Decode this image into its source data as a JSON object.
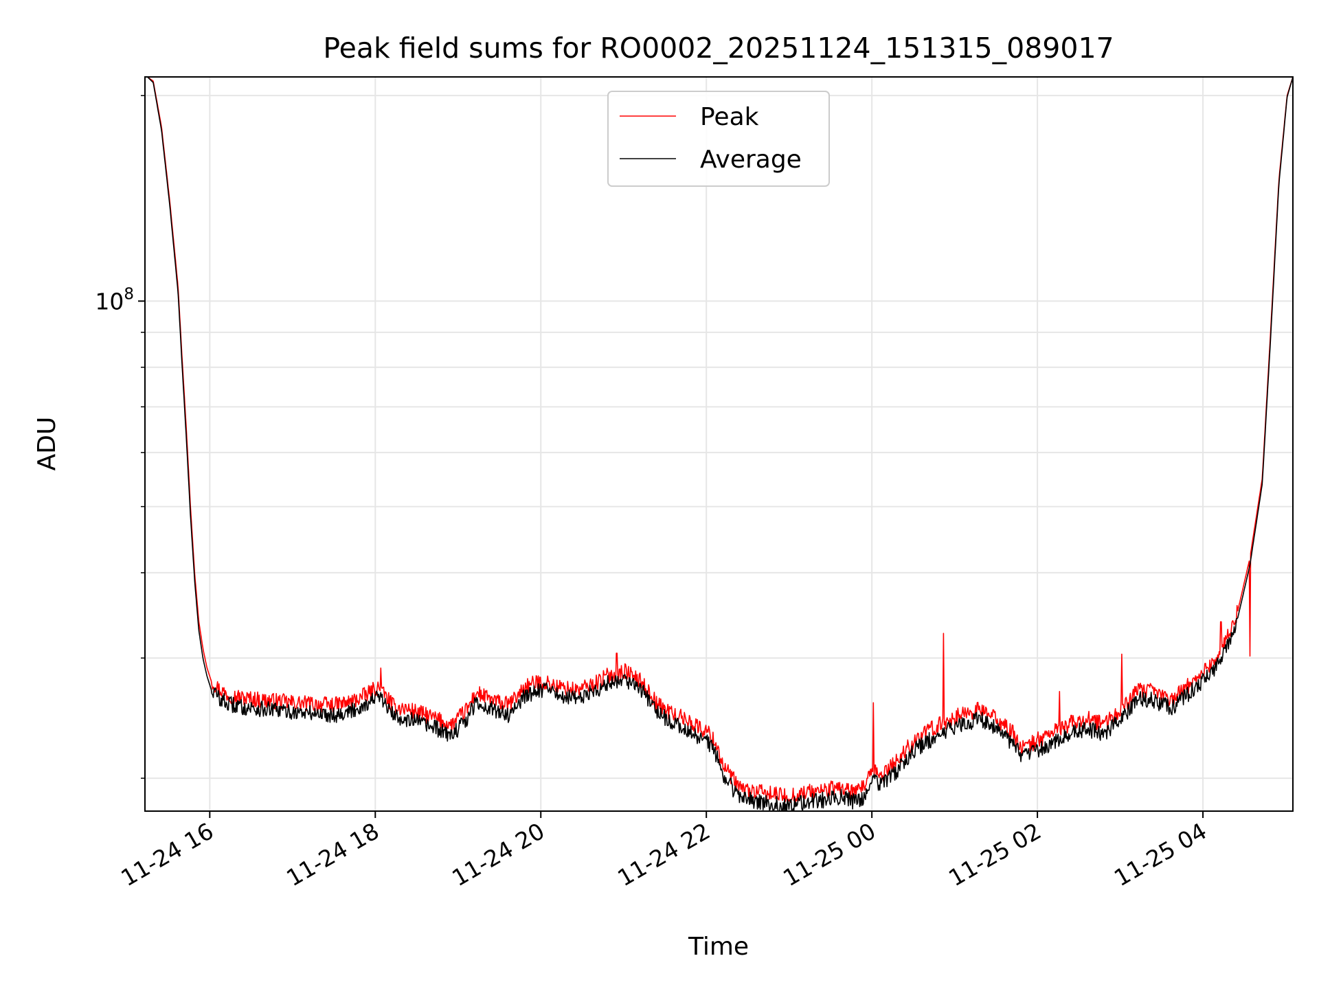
{
  "chart_data": {
    "type": "line",
    "title": "Peak field sums for RO0002_20251124_151315_089017",
    "xlabel": "Time",
    "ylabel": "ADU",
    "yscale": "log",
    "grid": true,
    "legend_position": "upper-center",
    "x_unit": "hours since 2025-11-24 15:13",
    "xlim": [
      0,
      13.87
    ],
    "ylim": [
      17900000,
      213000000
    ],
    "x_ticks": [
      {
        "x": 0.783,
        "label": "11-24 16"
      },
      {
        "x": 2.783,
        "label": "11-24 18"
      },
      {
        "x": 4.783,
        "label": "11-24 20"
      },
      {
        "x": 6.783,
        "label": "11-24 22"
      },
      {
        "x": 8.783,
        "label": "11-25 00"
      },
      {
        "x": 10.783,
        "label": "11-25 02"
      },
      {
        "x": 12.783,
        "label": "11-25 04"
      }
    ],
    "y_ticks": [
      {
        "y": 100000000,
        "base": "10",
        "exp": "8"
      }
    ],
    "y_minor_ticks": [
      20000000,
      30000000,
      40000000,
      50000000,
      60000000,
      70000000,
      80000000,
      90000000,
      200000000
    ],
    "series": [
      {
        "name": "Peak",
        "color": "#ff0000",
        "x": [
          0.03,
          0.1,
          0.2,
          0.3,
          0.4,
          0.45,
          0.5,
          0.55,
          0.6,
          0.65,
          0.7,
          0.75,
          0.8,
          0.9,
          1.0,
          1.2,
          1.5,
          1.8,
          2.0,
          2.3,
          2.5,
          2.7,
          2.8,
          2.9,
          3.0,
          3.2,
          3.5,
          3.7,
          3.9,
          4.0,
          4.2,
          4.4,
          4.6,
          4.8,
          5.0,
          5.2,
          5.4,
          5.6,
          5.8,
          6.0,
          6.2,
          6.4,
          6.6,
          6.7,
          6.8,
          6.9,
          7.0,
          7.2,
          7.5,
          7.8,
          8.0,
          8.2,
          8.4,
          8.6,
          8.7,
          8.8,
          8.9,
          9.1,
          9.3,
          9.5,
          9.7,
          9.9,
          10.1,
          10.3,
          10.5,
          10.6,
          10.8,
          11.0,
          11.2,
          11.4,
          11.6,
          11.8,
          12.0,
          12.2,
          12.4,
          12.6,
          12.8,
          12.95,
          13.05,
          13.2,
          13.35,
          13.5,
          13.6,
          13.7,
          13.8,
          13.87
        ],
        "y": [
          213000000,
          210000000,
          180000000,
          140000000,
          105000000,
          82000000,
          65000000,
          50000000,
          40000000,
          34000000,
          31000000,
          29000000,
          27800000,
          27000000,
          26500000,
          26200000,
          26000000,
          25800000,
          25700000,
          25600000,
          25900000,
          26600000,
          27200000,
          26500000,
          25500000,
          25200000,
          24500000,
          23900000,
          25300000,
          26700000,
          26000000,
          25600000,
          27300000,
          27700000,
          27200000,
          26900000,
          27400000,
          28300000,
          28700000,
          27700000,
          25600000,
          24800000,
          24200000,
          23700000,
          23400000,
          22500000,
          20700000,
          19300000,
          19000000,
          18800000,
          19100000,
          19200000,
          19400000,
          19000000,
          19600000,
          20500000,
          20200000,
          21300000,
          22800000,
          23600000,
          24300000,
          24900000,
          25200000,
          24400000,
          23200000,
          22100000,
          22800000,
          23500000,
          24100000,
          24400000,
          24000000,
          25300000,
          26900000,
          26800000,
          26100000,
          27300000,
          28800000,
          30000000,
          31500000,
          35000000,
          42000000,
          55000000,
          90000000,
          150000000,
          200000000,
          213000000
        ],
        "spikes": [
          {
            "x": 2.85,
            "y": 29000000
          },
          {
            "x": 5.7,
            "y": 30500000
          },
          {
            "x": 8.8,
            "y": 25800000
          },
          {
            "x": 9.65,
            "y": 32600000
          },
          {
            "x": 11.05,
            "y": 26800000
          },
          {
            "x": 11.8,
            "y": 30400000
          },
          {
            "x": 13.0,
            "y": 33900000
          },
          {
            "x": 13.35,
            "y": 30200000
          }
        ]
      },
      {
        "name": "Average",
        "color": "#000000",
        "x": [
          0.03,
          0.1,
          0.2,
          0.3,
          0.4,
          0.45,
          0.5,
          0.55,
          0.6,
          0.65,
          0.7,
          0.75,
          0.8,
          0.9,
          1.0,
          1.2,
          1.5,
          1.8,
          2.0,
          2.3,
          2.5,
          2.7,
          2.8,
          2.9,
          3.0,
          3.2,
          3.5,
          3.7,
          3.9,
          4.0,
          4.2,
          4.4,
          4.6,
          4.8,
          5.0,
          5.2,
          5.4,
          5.6,
          5.8,
          6.0,
          6.2,
          6.4,
          6.6,
          6.7,
          6.8,
          6.9,
          7.0,
          7.2,
          7.5,
          7.8,
          8.0,
          8.2,
          8.4,
          8.6,
          8.7,
          8.8,
          8.9,
          9.1,
          9.3,
          9.5,
          9.7,
          9.9,
          10.1,
          10.3,
          10.5,
          10.6,
          10.8,
          11.0,
          11.2,
          11.4,
          11.6,
          11.8,
          12.0,
          12.2,
          12.4,
          12.6,
          12.8,
          12.95,
          13.05,
          13.2,
          13.35,
          13.5,
          13.6,
          13.7,
          13.8,
          13.87
        ],
        "y": [
          213000000,
          209000000,
          178000000,
          138000000,
          103000000,
          80000000,
          63000000,
          48500000,
          39000000,
          33000000,
          30000000,
          28200000,
          27000000,
          26200000,
          25700000,
          25400000,
          25200000,
          25000000,
          24900000,
          24800000,
          25100000,
          25800000,
          26400000,
          25700000,
          24700000,
          24400000,
          23700000,
          23100000,
          24500000,
          25900000,
          25200000,
          24800000,
          26500000,
          27000000,
          26500000,
          26200000,
          26700000,
          27600000,
          28000000,
          27000000,
          24900000,
          24000000,
          23400000,
          22900000,
          22600000,
          21700000,
          20000000,
          18700000,
          18400000,
          18200000,
          18500000,
          18600000,
          18800000,
          18400000,
          18900000,
          19800000,
          19500000,
          20600000,
          22000000,
          22800000,
          23500000,
          24100000,
          24400000,
          23600000,
          22400000,
          21400000,
          22000000,
          22700000,
          23300000,
          23600000,
          23200000,
          24500000,
          26100000,
          26000000,
          25300000,
          26500000,
          28000000,
          29200000,
          30700000,
          34200000,
          41000000,
          54000000,
          88000000,
          148000000,
          199000000,
          213000000
        ]
      }
    ]
  }
}
